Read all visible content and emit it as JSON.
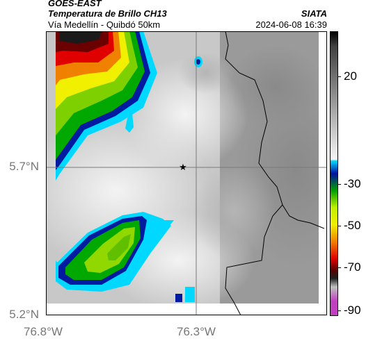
{
  "header": {
    "satellite": "GOES-EAST",
    "product": "Temperatura de Brillo CH13",
    "agency": "SIATA",
    "region": "Vía Medellín - Quibdó 50km",
    "timestamp": "2024-06-08 16:39"
  },
  "axes": {
    "y_ticks": [
      "5.7°N",
      "5.2°N"
    ],
    "x_ticks": [
      "76.8°W",
      "76.3°W"
    ]
  },
  "colorbar": {
    "labels": [
      "20",
      "-30",
      "-50",
      "-70",
      "-90"
    ],
    "unit": ""
  },
  "colors": {
    "cloud_cold": "#00b000",
    "cloud_warm": "#d0d0d0",
    "cyan": "#00d8ff",
    "deep_blue": "#001aa0",
    "red": "#e00000",
    "yellow": "#f0f000",
    "magenta": "#c040c0"
  },
  "marker": {
    "symbol": "★"
  }
}
